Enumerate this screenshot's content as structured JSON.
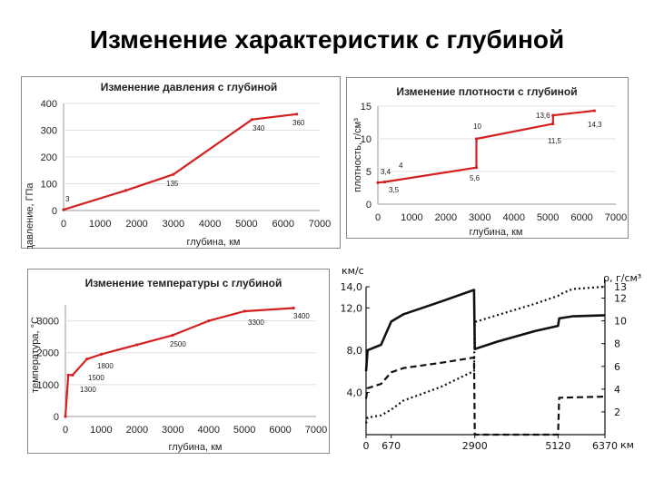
{
  "page": {
    "title": "Изменение характеристик с глубиной"
  },
  "chart_data": [
    {
      "type": "line",
      "title": "Изменение давления с глубиной",
      "xlabel": "глубина, км",
      "ylabel": "давление, ГПа",
      "xlim": [
        0,
        7000
      ],
      "ylim": [
        0,
        400
      ],
      "xticks": [
        "0",
        "1000",
        "2000",
        "3000",
        "4000",
        "5000",
        "6000",
        "7000"
      ],
      "yticks": [
        "0",
        "100",
        "200",
        "300",
        "400"
      ],
      "series": [
        {
          "x": [
            0,
            1700,
            3000,
            5150,
            6370
          ],
          "y": [
            3,
            75,
            135,
            340,
            360
          ]
        }
      ],
      "annotations": [
        "3",
        "135",
        "340",
        "360"
      ],
      "color": "#d42020"
    },
    {
      "type": "line",
      "title": "Изменение плотности с глубиной",
      "xlabel": "глубина, км",
      "ylabel": "плотность, г/см³",
      "xlim": [
        0,
        7000
      ],
      "ylim": [
        0,
        15
      ],
      "xticks": [
        "0",
        "1000",
        "2000",
        "3000",
        "4000",
        "5000",
        "6000",
        "7000"
      ],
      "yticks": [
        "0",
        "5",
        "10",
        "15"
      ],
      "series": [
        {
          "x": [
            0,
            200,
            2900,
            2900,
            5150,
            5150,
            6370
          ],
          "y": [
            3.3,
            3.4,
            5.6,
            10,
            12.3,
            13.6,
            14.3
          ]
        }
      ],
      "annotations": [
        "3,4",
        "3,5",
        "4",
        "5,6",
        "10",
        "11,5",
        "13,6",
        "14,3"
      ],
      "color": "#d42020"
    },
    {
      "type": "line",
      "title": "Изменение температуры с глубиной",
      "xlabel": "глубина, км",
      "ylabel": "температура, °C",
      "xlim": [
        0,
        7000
      ],
      "ylim": [
        0,
        3500
      ],
      "xticks": [
        "0",
        "1000",
        "2000",
        "3000",
        "4000",
        "5000",
        "6000",
        "7000"
      ],
      "yticks": [
        "0",
        "1000",
        "2000",
        "3000"
      ],
      "series": [
        {
          "x": [
            0,
            80,
            200,
            600,
            1000,
            2000,
            3000,
            4000,
            5000,
            6370
          ],
          "y": [
            0,
            1300,
            1300,
            1800,
            1950,
            2250,
            2550,
            3000,
            3300,
            3400
          ]
        }
      ],
      "annotations": [
        "1300",
        "1500",
        "1800",
        "2500",
        "3300",
        "3400"
      ],
      "color": "#d42020"
    },
    {
      "type": "line",
      "title": "",
      "xlabel": "км",
      "ylabel_left": "км/с",
      "ylabel_right": "ρ, г/см³",
      "xticks": [
        "0",
        "670",
        "2900",
        "5120",
        "6370"
      ],
      "yticks_left": [
        "4,0",
        "8,0",
        "12,0",
        "14,0"
      ],
      "yticks_right": [
        "2",
        "4",
        "6",
        "8",
        "10",
        "12",
        "13"
      ],
      "xlim": [
        0,
        6370
      ],
      "ylim_left": [
        0,
        14
      ],
      "ylim_right": [
        0,
        13
      ],
      "series": [
        {
          "style": "solid",
          "axis": "left",
          "x": [
            0,
            40,
            400,
            670,
            1000,
            2000,
            2880,
            2900,
            3500,
            4500,
            5120,
            5150,
            5500,
            6370
          ],
          "y": [
            6.0,
            8.0,
            8.5,
            10.7,
            11.4,
            12.6,
            13.7,
            8.1,
            8.8,
            9.8,
            10.3,
            11.0,
            11.2,
            11.3
          ]
        },
        {
          "style": "dashed",
          "axis": "left",
          "x": [
            0,
            40,
            400,
            670,
            1000,
            2000,
            2880,
            2900,
            5120,
            5150,
            6370
          ],
          "y": [
            3.4,
            4.4,
            4.8,
            5.9,
            6.3,
            6.8,
            7.3,
            0,
            0,
            3.5,
            3.6
          ]
        },
        {
          "style": "dotted",
          "axis": "right",
          "x": [
            0,
            40,
            400,
            670,
            1000,
            2000,
            2880,
            2900,
            3500,
            4500,
            5120,
            5150,
            5500,
            6370
          ],
          "y": [
            1.0,
            1.5,
            1.7,
            2.2,
            3.0,
            4.2,
            5.6,
            9.9,
            10.5,
            11.5,
            12.2,
            12.3,
            12.8,
            13.0
          ]
        }
      ]
    }
  ]
}
